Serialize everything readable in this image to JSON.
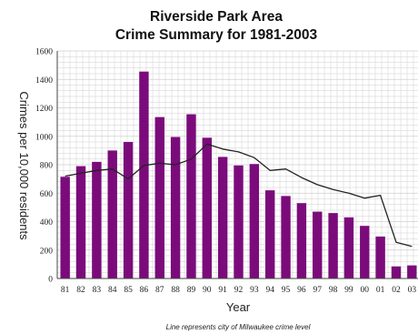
{
  "chart_data": {
    "type": "bar",
    "title_lines": [
      "Riverside Park Area",
      "Crime Summary for 1981-2003"
    ],
    "xlabel": "Year",
    "ylabel": "Crimes per 10,000 residents",
    "footnote": "Line represents city of Milwaukee crime level",
    "categories": [
      "81",
      "82",
      "83",
      "84",
      "85",
      "86",
      "87",
      "88",
      "89",
      "90",
      "91",
      "92",
      "93",
      "94",
      "95",
      "96",
      "97",
      "98",
      "99",
      "00",
      "01",
      "02",
      "03"
    ],
    "series": [
      {
        "values": [
          715,
          790,
          820,
          900,
          960,
          1455,
          1135,
          995,
          1155,
          990,
          855,
          795,
          805,
          620,
          580,
          530,
          470,
          460,
          430,
          370,
          295,
          85,
          92
        ]
      },
      {
        "values": [
          720,
          740,
          760,
          770,
          700,
          795,
          810,
          800,
          840,
          945,
          910,
          890,
          850,
          760,
          770,
          710,
          660,
          625,
          600,
          565,
          585,
          255,
          225
        ]
      }
    ],
    "ylim": [
      0,
      1600
    ],
    "yticks": [
      "0",
      "200",
      "400",
      "600",
      "800",
      "1000",
      "1200",
      "1400",
      "1600"
    ],
    "grid": true,
    "colors": {
      "bar": "#7b0b7b",
      "line": "#222222",
      "grid": "#cfcfcf"
    }
  }
}
